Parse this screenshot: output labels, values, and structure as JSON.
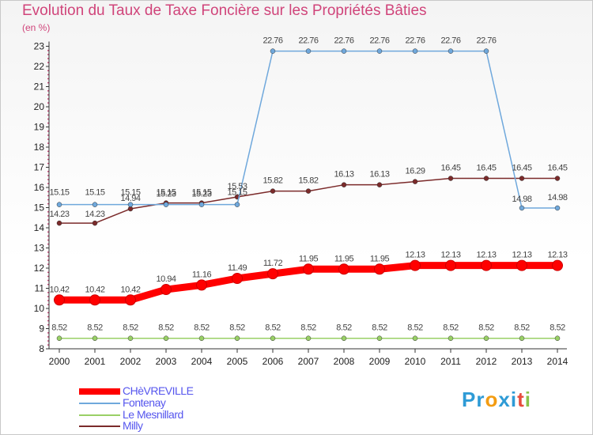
{
  "chart_data": {
    "type": "line",
    "title": "Evolution du Taux de Taxe Foncière sur les Propriétés Bâties",
    "ylabel": "(en %)",
    "xlabel": "",
    "x": [
      "2000",
      "2001",
      "2002",
      "2003",
      "2004",
      "2005",
      "2006",
      "2007",
      "2008",
      "2009",
      "2010",
      "2011",
      "2012",
      "2013",
      "2014"
    ],
    "ylim": [
      8,
      23
    ],
    "yticks": [
      "8",
      "9",
      "10",
      "11",
      "12",
      "13",
      "14",
      "15",
      "16",
      "17",
      "18",
      "19",
      "20",
      "21",
      "22",
      "23"
    ],
    "grid": false,
    "series": [
      {
        "name": "CHèVREVILLE",
        "color": "#ff0000",
        "values": [
          10.42,
          10.42,
          10.42,
          10.94,
          11.16,
          11.49,
          11.72,
          11.95,
          11.95,
          11.95,
          12.13,
          12.13,
          12.13,
          12.13,
          12.13
        ],
        "labels": [
          "10.42",
          "10.42",
          "10.42",
          "10.94",
          "11.16",
          "11.49",
          "11.72",
          "11.95",
          "11.95",
          "11.95",
          "12.13",
          "12.13",
          "12.13",
          "12.13",
          "12.13"
        ]
      },
      {
        "name": "Fontenay",
        "color": "#6fa8dc",
        "values": [
          15.15,
          15.15,
          15.15,
          15.15,
          15.15,
          15.15,
          22.76,
          22.76,
          22.76,
          22.76,
          22.76,
          22.76,
          22.76,
          14.98,
          14.98
        ],
        "labels": [
          "15.15",
          "15.15",
          "15.15",
          "15.15",
          "15.15",
          "15.15",
          "22.76",
          "22.76",
          "22.76",
          "22.76",
          "22.76",
          "22.76",
          "22.76",
          "14.98",
          "14.98"
        ]
      },
      {
        "name": "Le Mesnillard",
        "color": "#99d066",
        "values": [
          8.52,
          8.52,
          8.52,
          8.52,
          8.52,
          8.52,
          8.52,
          8.52,
          8.52,
          8.52,
          8.52,
          8.52,
          8.52,
          8.52,
          8.52
        ],
        "labels": [
          "8.52",
          "8.52",
          "8.52",
          "8.52",
          "8.52",
          "8.52",
          "8.52",
          "8.52",
          "8.52",
          "8.52",
          "8.52",
          "8.52",
          "8.52",
          "8.52",
          "8.52"
        ]
      },
      {
        "name": "Milly",
        "color": "#7b2a2a",
        "values": [
          14.23,
          14.23,
          14.94,
          15.23,
          15.23,
          15.53,
          15.82,
          15.82,
          16.13,
          16.13,
          16.29,
          16.45,
          16.45,
          16.45,
          16.45
        ],
        "labels": [
          "14.23",
          "14.23",
          "14.94",
          "15.23",
          "15.23",
          "15.53",
          "15.82",
          "15.82",
          "16.13",
          "16.13",
          "16.29",
          "16.45",
          "16.45",
          "16.45",
          "16.45"
        ]
      }
    ]
  },
  "logo": {
    "text": "Proxiti"
  }
}
